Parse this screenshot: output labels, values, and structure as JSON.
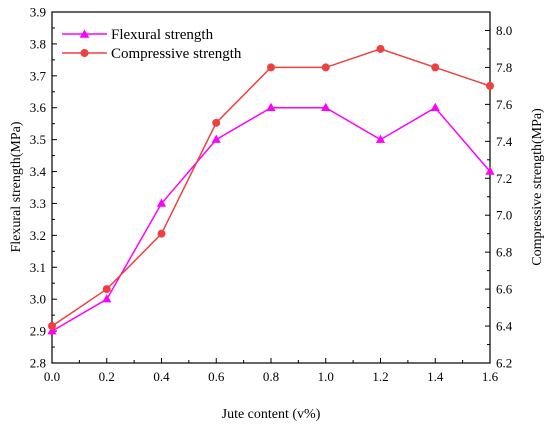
{
  "chart_data": {
    "type": "line",
    "xlabel": "Jute content (v%)",
    "ylabel_left": "Flexural strength(MPa)",
    "ylabel_right": "Compressive strength(MPa)",
    "x": [
      0.0,
      0.2,
      0.4,
      0.6,
      0.8,
      1.0,
      1.2,
      1.4,
      1.6
    ],
    "x_ticks": [
      "0.0",
      "0.2",
      "0.4",
      "0.6",
      "0.8",
      "1.0",
      "1.2",
      "1.4",
      "1.6"
    ],
    "xlim": [
      0.0,
      1.6
    ],
    "ylim_left": [
      2.8,
      3.9
    ],
    "ylim_right": [
      6.2,
      8.1
    ],
    "y_ticks_left": [
      "2.8",
      "2.9",
      "3.0",
      "3.1",
      "3.2",
      "3.3",
      "3.4",
      "3.5",
      "3.6",
      "3.7",
      "3.8",
      "3.9"
    ],
    "y_ticks_right": [
      "6.2",
      "6.4",
      "6.6",
      "6.8",
      "7.0",
      "7.2",
      "7.4",
      "7.6",
      "7.8",
      "8.0"
    ],
    "legend_position": "top-left",
    "grid": false,
    "series": [
      {
        "name": "Flexural strength",
        "axis": "left",
        "color": "#ff00ff",
        "marker": "triangle",
        "values": [
          2.9,
          3.0,
          3.3,
          3.5,
          3.6,
          3.6,
          3.5,
          3.6,
          3.4
        ]
      },
      {
        "name": "Compressive strength",
        "axis": "right",
        "color": "#ef4040",
        "marker": "circle",
        "values": [
          6.4,
          6.6,
          6.9,
          7.5,
          7.8,
          7.8,
          7.9,
          7.8,
          7.7
        ]
      }
    ]
  }
}
